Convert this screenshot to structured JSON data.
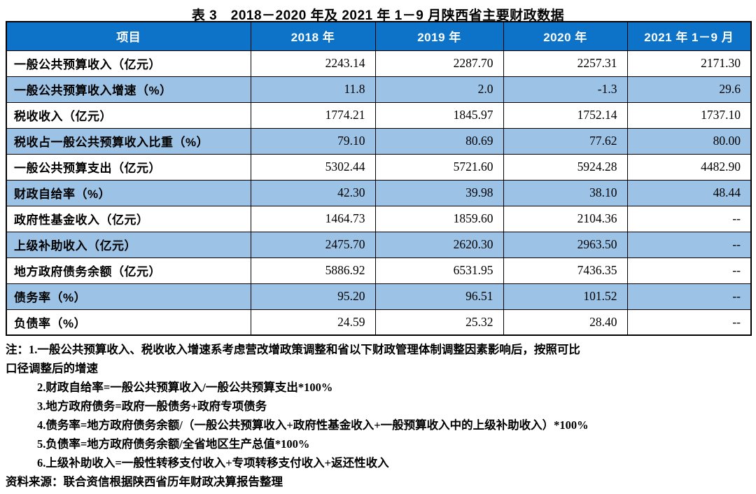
{
  "page": {
    "title": "表 3　2018－2020 年及 2021 年 1－9 月陕西省主要财政数据"
  },
  "table": {
    "columns": [
      "项目",
      "2018 年",
      "2019 年",
      "2020 年",
      "2021 年 1－9 月"
    ],
    "rows": [
      {
        "label": "一般公共预算收入（亿元）",
        "values": [
          "2243.14",
          "2287.70",
          "2257.31",
          "2171.30"
        ],
        "shaded": false
      },
      {
        "label": "一般公共预算收入增速（%）",
        "values": [
          "11.8",
          "2.0",
          "-1.3",
          "29.6"
        ],
        "shaded": true
      },
      {
        "label": "税收收入（亿元）",
        "values": [
          "1774.21",
          "1845.97",
          "1752.14",
          "1737.10"
        ],
        "shaded": false
      },
      {
        "label": "税收占一般公共预算收入比重（%）",
        "values": [
          "79.10",
          "80.69",
          "77.62",
          "80.00"
        ],
        "shaded": true
      },
      {
        "label": "一般公共预算支出（亿元）",
        "values": [
          "5302.44",
          "5721.60",
          "5924.28",
          "4482.90"
        ],
        "shaded": false
      },
      {
        "label": "财政自给率（%）",
        "values": [
          "42.30",
          "39.98",
          "38.10",
          "48.44"
        ],
        "shaded": true
      },
      {
        "label": "政府性基金收入（亿元）",
        "values": [
          "1464.73",
          "1859.60",
          "2104.36",
          "--"
        ],
        "shaded": false
      },
      {
        "label": "上级补助收入（亿元）",
        "values": [
          "2475.70",
          "2620.30",
          "2963.50",
          "--"
        ],
        "shaded": true
      },
      {
        "label": "地方政府债务余额（亿元）",
        "values": [
          "5886.92",
          "6531.95",
          "7436.35",
          "--"
        ],
        "shaded": false
      },
      {
        "label": "债务率（%）",
        "values": [
          "95.20",
          "96.51",
          "101.52",
          "--"
        ],
        "shaded": true
      },
      {
        "label": "负债率（%）",
        "values": [
          "24.59",
          "25.32",
          "28.40",
          "--"
        ],
        "shaded": false
      }
    ]
  },
  "notes": {
    "lines": [
      {
        "text": "注：1.一般公共预算收入、税收收入增速系考虑营改增政策调整和省以下财政管理体制调整因素影响后，按照可比",
        "indent": false
      },
      {
        "text": "口径调整后的增速",
        "indent": false
      },
      {
        "text": "2.财政自给率=一般公共预算收入/一般公共预算支出*100%",
        "indent": true
      },
      {
        "text": "3.地方政府债务=政府一般债务+政府专项债务",
        "indent": true
      },
      {
        "text": "4.债务率=地方政府债务余额/（一般公共预算收入+政府性基金收入+一般预算收入中的上级补助收入）*100%",
        "indent": true
      },
      {
        "text": "5.负债率=地方政府债务余额/全省地区生产总值*100%",
        "indent": true
      },
      {
        "text": "6.上级补助收入=一般性转移支付收入+专项转移支付收入+返还性收入",
        "indent": true
      }
    ]
  },
  "source": "资料来源：联合资信根据陕西省历年财政决算报告整理",
  "colors": {
    "header_bg": "#0d73c8",
    "header_text": "#fdfdfd",
    "shaded_row_bg": "#9cc3e6",
    "border": "#000000"
  }
}
